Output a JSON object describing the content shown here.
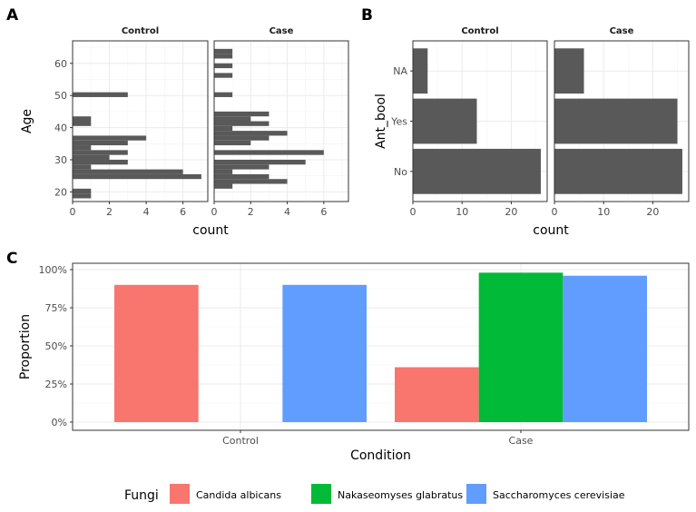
{
  "panel_labels": [
    "A",
    "B",
    "C"
  ],
  "chart_data": [
    {
      "id": "A",
      "type": "histogram",
      "orientation": "horizontal",
      "facets": [
        "Control",
        "Case"
      ],
      "ylabel": "Age",
      "xlabel": "count",
      "xlim": [
        0,
        7.35
      ],
      "ylim": [
        17,
        67
      ],
      "x_ticks": [
        0,
        2,
        4,
        6
      ],
      "y_ticks": [
        20,
        30,
        40,
        50,
        60
      ],
      "bin_width": 1.5,
      "bins": [
        [
          18.75,
          1,
          0
        ],
        [
          20.25,
          1,
          0
        ],
        [
          21.75,
          0,
          1
        ],
        [
          23.25,
          0,
          4
        ],
        [
          24.75,
          7,
          3
        ],
        [
          26.25,
          6,
          1
        ],
        [
          27.75,
          1,
          3
        ],
        [
          29.25,
          3,
          5
        ],
        [
          30.75,
          2,
          0
        ],
        [
          32.25,
          3,
          6
        ],
        [
          33.75,
          1,
          0
        ],
        [
          35.25,
          3,
          2
        ],
        [
          36.75,
          4,
          3
        ],
        [
          38.25,
          0,
          4
        ],
        [
          39.75,
          0,
          1
        ],
        [
          41.25,
          1,
          3
        ],
        [
          42.75,
          1,
          2
        ],
        [
          44.25,
          0,
          3
        ],
        [
          45.75,
          0,
          0
        ],
        [
          47.25,
          0,
          0
        ],
        [
          48.75,
          0,
          0
        ],
        [
          50.25,
          3,
          1
        ],
        [
          51.75,
          0,
          0
        ],
        [
          53.25,
          0,
          0
        ],
        [
          54.75,
          0,
          0
        ],
        [
          56.25,
          0,
          1
        ],
        [
          57.75,
          0,
          0
        ],
        [
          59.25,
          0,
          1
        ],
        [
          60.75,
          0,
          0
        ],
        [
          62.25,
          0,
          1
        ],
        [
          63.75,
          0,
          1
        ]
      ],
      "colors": {
        "bar": "#595959",
        "panel_bg": "#ffffff",
        "grid": "#ebebeb",
        "strip": "#ffffff"
      }
    },
    {
      "id": "B",
      "type": "bar",
      "orientation": "horizontal",
      "facets": [
        "Control",
        "Case"
      ],
      "ylabel": "Ant_bool",
      "xlabel": "count",
      "categories": [
        "No",
        "Yes",
        "NA"
      ],
      "xlim": [
        0,
        27.3
      ],
      "x_ticks": [
        0,
        10,
        20
      ],
      "values": {
        "Control": [
          26,
          13,
          3
        ],
        "Case": [
          26,
          25,
          6
        ]
      },
      "colors": {
        "bar": "#595959"
      }
    },
    {
      "id": "C",
      "type": "bar",
      "orientation": "vertical",
      "grouped": true,
      "xlabel": "Condition",
      "ylabel": "Proportion",
      "categories": [
        "Control",
        "Case"
      ],
      "ylim": [
        0,
        1.0
      ],
      "y_ticks": [
        0,
        0.25,
        0.5,
        0.75,
        1.0
      ],
      "y_tick_labels": [
        "0%",
        "25%",
        "50%",
        "75%",
        "100%"
      ],
      "legend_title": "Fungi",
      "legend_position": "bottom",
      "series": [
        {
          "name": "Candida albicans",
          "color": "#F8766D",
          "values": [
            0.9,
            0.36
          ]
        },
        {
          "name": "Nakaseomyses glabratus",
          "color": "#00BA38",
          "values": [
            null,
            0.98
          ]
        },
        {
          "name": "Saccharomyces cerevisiae",
          "color": "#619CFF",
          "values": [
            0.9,
            0.96
          ]
        }
      ]
    }
  ]
}
